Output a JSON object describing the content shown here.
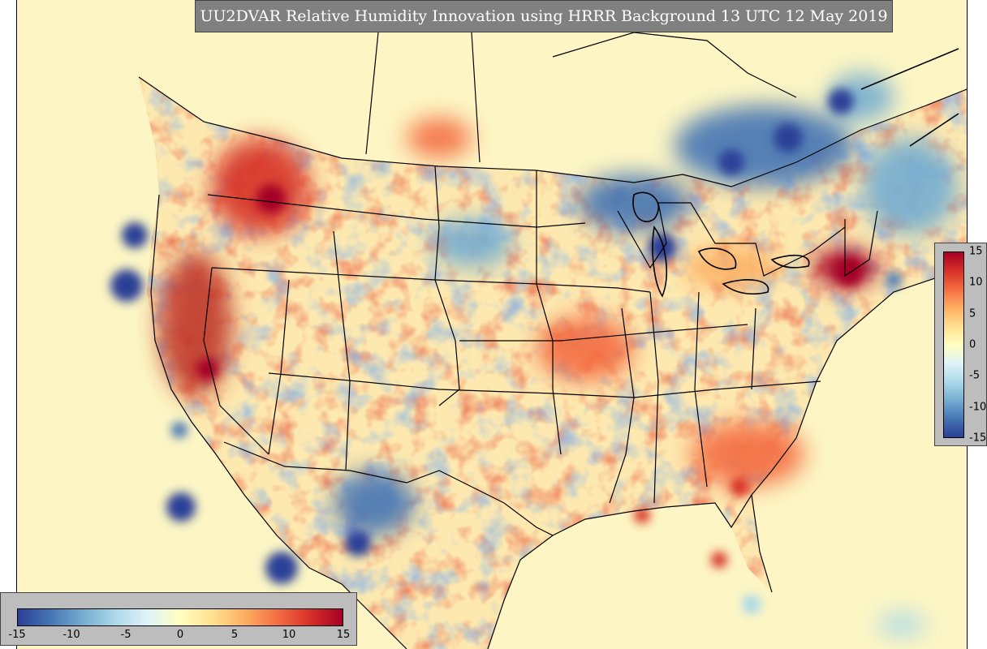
{
  "title": "UU2DVAR Relative Humidity Innovation using HRRR Background 13 UTC 12 May 2019",
  "colorbar_vertical": {
    "ticks": [
      "15",
      "10",
      "5",
      "0",
      "-5",
      "-10",
      "-15"
    ]
  },
  "colorbar_horizontal": {
    "ticks": [
      "-15",
      "-10",
      "-5",
      "0",
      "5",
      "10",
      "15"
    ]
  },
  "colormap": {
    "name": "RdYlBu (reversed)",
    "min": -15,
    "max": 15,
    "stops": [
      "#2a3f97",
      "#4575b4",
      "#74add1",
      "#abd9e9",
      "#e0f3f8",
      "#ffffbf",
      "#fee090",
      "#fdae61",
      "#f46d43",
      "#d73027",
      "#a50026"
    ]
  },
  "colors": {
    "background_field": "#fdf6c4",
    "title_box": "#808080",
    "colorbar_panel": "#bdbdbd"
  }
}
